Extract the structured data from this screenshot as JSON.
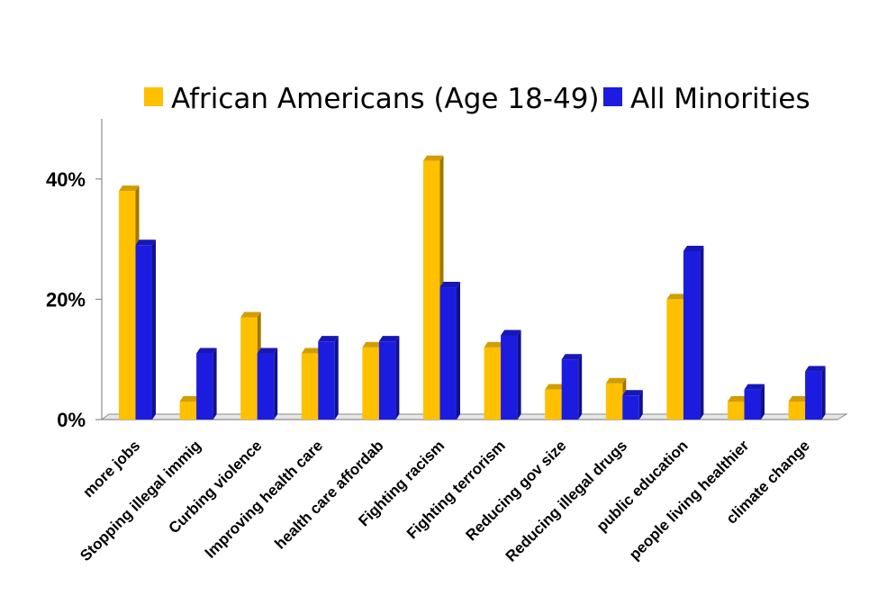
{
  "chart_data": {
    "type": "bar",
    "title": "",
    "xlabel": "",
    "ylabel": "",
    "ylim": [
      0,
      50
    ],
    "yticks": [
      0,
      20,
      40
    ],
    "ytick_labels": [
      "0%",
      "20%",
      "40%"
    ],
    "categories": [
      "more jobs",
      "Stopping illegal immig",
      "Curbing  violence",
      "Improving health care",
      "health care affordab",
      "Fighting racism",
      "Fighting terrorism",
      "Reducing gov size",
      "Reducing illegal drugs",
      "public education",
      "people living healthier",
      "climate change"
    ],
    "series": [
      {
        "name": "African Americans (Age 18-49)",
        "color": "#FFC000",
        "values": [
          38,
          3,
          17,
          11,
          12,
          43,
          12,
          5,
          6,
          20,
          3,
          3
        ]
      },
      {
        "name": "All Minorities",
        "color": "#1C1CE0",
        "values": [
          29,
          11,
          11,
          13,
          13,
          22,
          14,
          10,
          4,
          28,
          5,
          8
        ]
      }
    ],
    "legend_position": "top",
    "grid": false,
    "style": "3d-bars"
  }
}
